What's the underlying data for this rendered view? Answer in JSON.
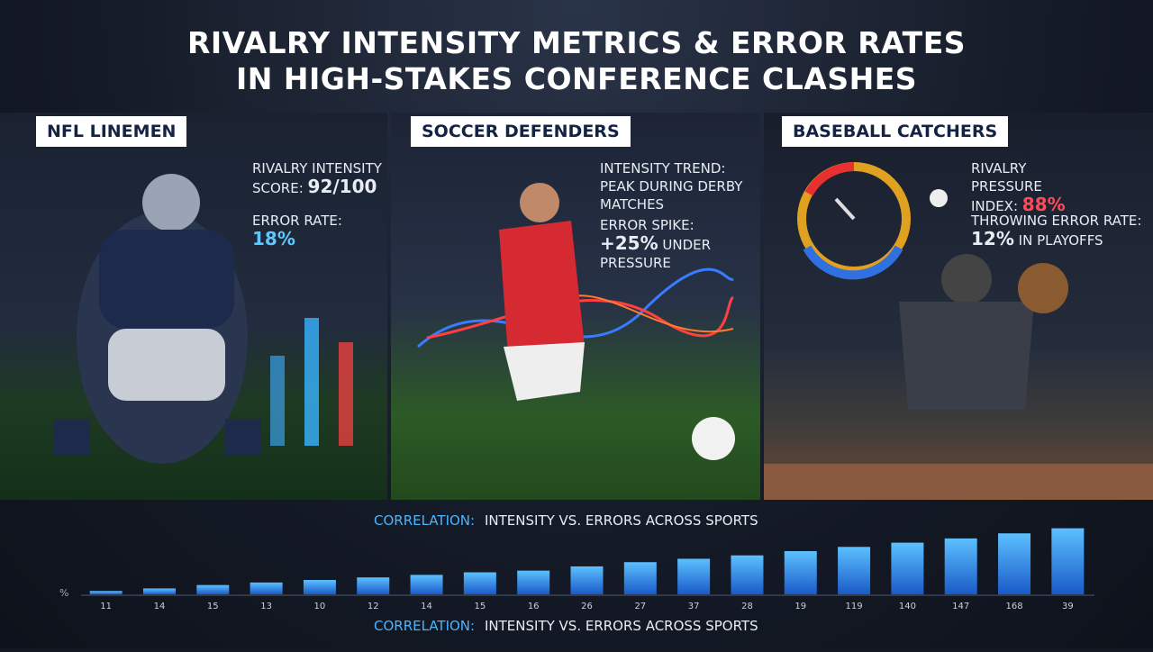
{
  "title": [
    "RIVALRY INTENSITY METRICS & ERROR RATES",
    "IN HIGH-STAKES CONFERENCE CLASHES"
  ],
  "panels": [
    {
      "label": "NFL LINEMEN",
      "stats": [
        {
          "label": "RIVALRY INTENSITY SCORE:",
          "value": "92/100"
        },
        {
          "label": "ERROR RATE:",
          "value": "18%"
        }
      ]
    },
    {
      "label": "SOCCER DEFENDERS",
      "stats": [
        {
          "label": "INTENSITY TREND:",
          "value": "PEAK DURING DERBY MATCHES"
        },
        {
          "label": "ERROR SPIKE:",
          "value": "+25%",
          "note": "UNDER PRESSURE"
        }
      ]
    },
    {
      "label": "BASEBALL CATCHERS",
      "stats": [
        {
          "label": "RIVALRY PRESSURE INDEX:",
          "value": "88%"
        },
        {
          "label": "THROWING ERROR RATE:",
          "value": "12%",
          "note": "IN PLAYOFFS"
        }
      ]
    }
  ],
  "chart": {
    "type": "bar",
    "heading_prefix": "CORRELATION:",
    "heading_rest": "INTENSITY VS. ERRORS ACROSS SPORTS",
    "y_label": "%",
    "categories": [
      "11",
      "14",
      "15",
      "13",
      "10",
      "12",
      "14",
      "15",
      "16",
      "26",
      "27",
      "37",
      "28",
      "19",
      "119",
      "140",
      "147",
      "168",
      "39"
    ],
    "values": [
      4,
      7,
      11,
      14,
      17,
      20,
      23,
      26,
      28,
      33,
      38,
      42,
      46,
      51,
      56,
      61,
      66,
      72,
      78
    ],
    "ylim": [
      0,
      85
    ]
  }
}
